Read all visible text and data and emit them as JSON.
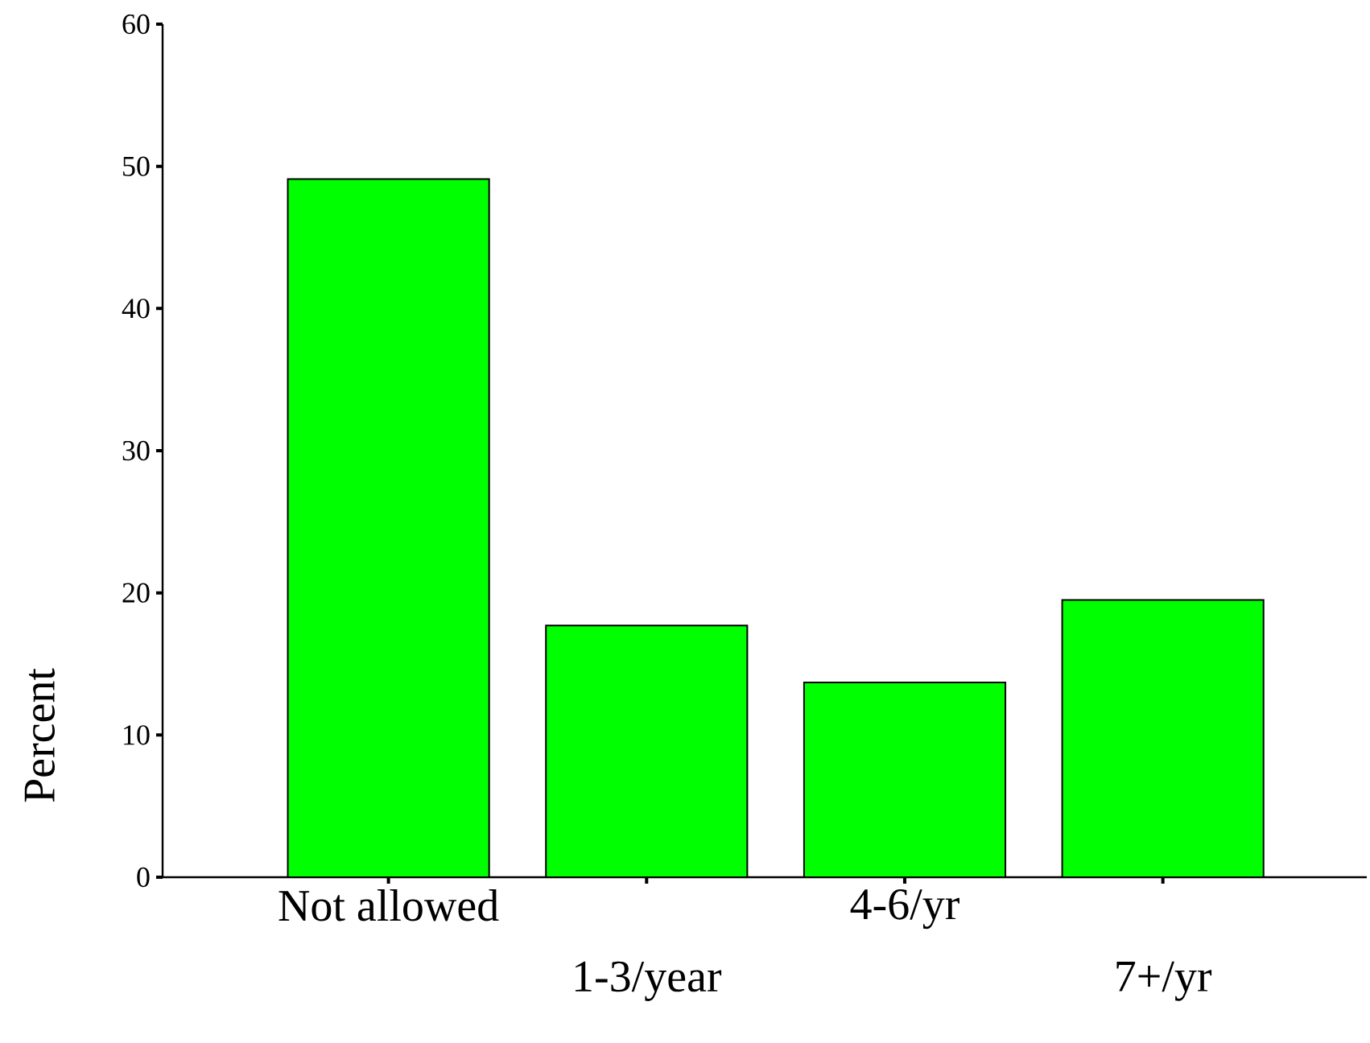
{
  "chart_data": {
    "type": "bar",
    "ylabel": "Percent",
    "categories": [
      "Not allowed",
      "1-3/year",
      "4-6/yr",
      "7+/yr"
    ],
    "values": [
      49.1,
      17.7,
      13.7,
      19.5
    ],
    "color": "#00ff00",
    "ylim": [
      0,
      60
    ],
    "yticks": [
      0,
      10,
      20,
      30,
      40,
      50,
      60
    ]
  }
}
